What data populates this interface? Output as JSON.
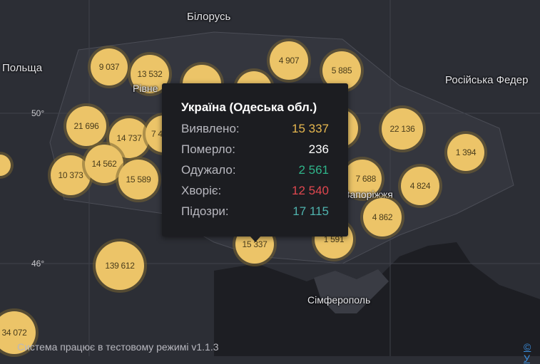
{
  "map": {
    "labels": {
      "belarus": "Білорусь",
      "poland": "Польща",
      "rivne": "Рівне",
      "russia": "Російська Федер",
      "zaporizhzhia": "Запоріжжя",
      "simferopol": "Сімферополь"
    },
    "gridlines": {
      "lat50": "50°",
      "lat46": "46°"
    },
    "bubbles": [
      "9 037",
      "13 532",
      "4 907",
      "5 885",
      "21 696",
      "14 737",
      "7 4",
      "14 562",
      "10 373",
      "15 589",
      "22 136",
      "1 394",
      "7 688",
      "4 824",
      "4 862",
      "1 591",
      "15 337",
      "139 612",
      "34 072"
    ],
    "bubble_color": "#ecc468"
  },
  "tooltip": {
    "title": "Україна (Одеська обл.)",
    "rows": [
      {
        "label": "Виявлено:",
        "value": "15 337",
        "color": "#e7b84f"
      },
      {
        "label": "Померло:",
        "value": "236",
        "color": "#ffffff"
      },
      {
        "label": "Одужало:",
        "value": "2 561",
        "color": "#2fb58a"
      },
      {
        "label": "Хворіє:",
        "value": "12 540",
        "color": "#e0474f"
      },
      {
        "label": "Підозри:",
        "value": "17 115",
        "color": "#4fb3ae"
      }
    ]
  },
  "footer": {
    "status": "Система працює в тестовому режимі v1.1.3",
    "attribution": "© У"
  }
}
